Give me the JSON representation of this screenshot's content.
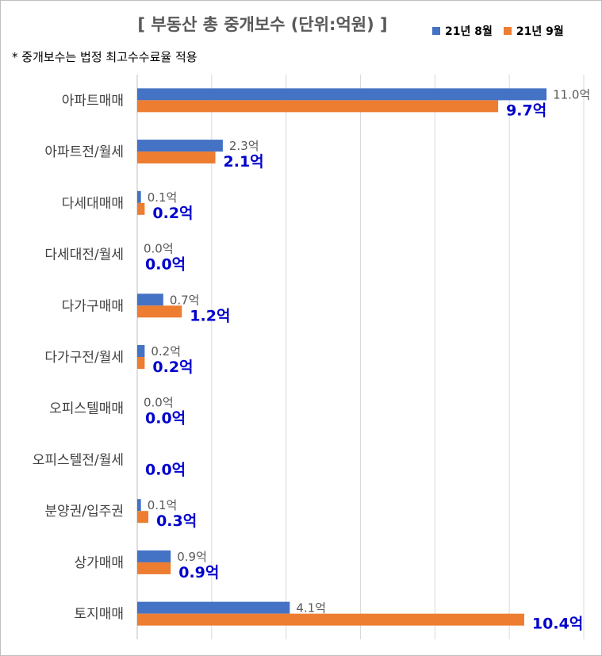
{
  "chart_data": {
    "type": "bar",
    "orientation": "horizontal",
    "title": "[ 부동산 총 중개보수 (단위:억원) ]",
    "note": "* 중개보수는 법정 최고수수료율 적용",
    "categories": [
      "아파트매매",
      "아파트전/월세",
      "다세대매매",
      "다세대전/월세",
      "다가구매매",
      "다가구전/월세",
      "오피스텔매매",
      "오피스텔전/월세",
      "분양권/입주권",
      "상가매매",
      "토지매매"
    ],
    "series": [
      {
        "name": "21년 8월",
        "color": "#4472C4",
        "values": [
          11.0,
          2.3,
          0.1,
          0.0,
          0.7,
          0.2,
          0.0,
          null,
          0.1,
          0.9,
          4.1
        ],
        "labels": [
          "11.0억",
          "2.3억",
          "0.1억",
          "0.0억",
          "0.7억",
          "0.2억",
          "0.0억",
          "",
          "0.1억",
          "0.9억",
          "4.1억"
        ]
      },
      {
        "name": "21년 9월",
        "color": "#ED7D31",
        "values": [
          9.7,
          2.1,
          0.2,
          0.0,
          1.2,
          0.2,
          0.0,
          0.0,
          0.3,
          0.9,
          10.4
        ],
        "labels": [
          "9.7억",
          "2.1억",
          "0.2억",
          "0.0억",
          "1.2억",
          "0.2억",
          "0.0억",
          "0.0억",
          "0.3억",
          "0.9억",
          "10.4억"
        ]
      }
    ],
    "xlim": [
      0,
      12
    ],
    "grid": true,
    "legend_position": "top-right"
  }
}
